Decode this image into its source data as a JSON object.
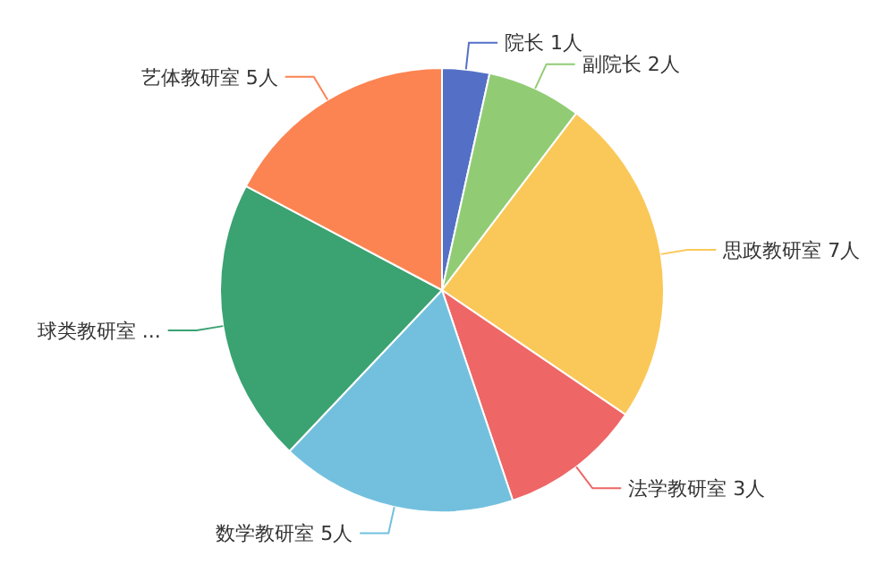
{
  "chart_data": {
    "type": "pie",
    "categories": [
      "院长",
      "副院长",
      "思政教研室",
      "法学教研室",
      "数学教研室",
      "球类教研室",
      "艺体教研室"
    ],
    "values": [
      1,
      2,
      7,
      3,
      5,
      6,
      5
    ],
    "value_labels": [
      "1人",
      "2人",
      "7人",
      "3人",
      "5人",
      "...",
      "5人"
    ],
    "colors": [
      "#5470c6",
      "#91cc75",
      "#fac858",
      "#ee6666",
      "#73c0de",
      "#3ba272",
      "#fc8452"
    ]
  }
}
